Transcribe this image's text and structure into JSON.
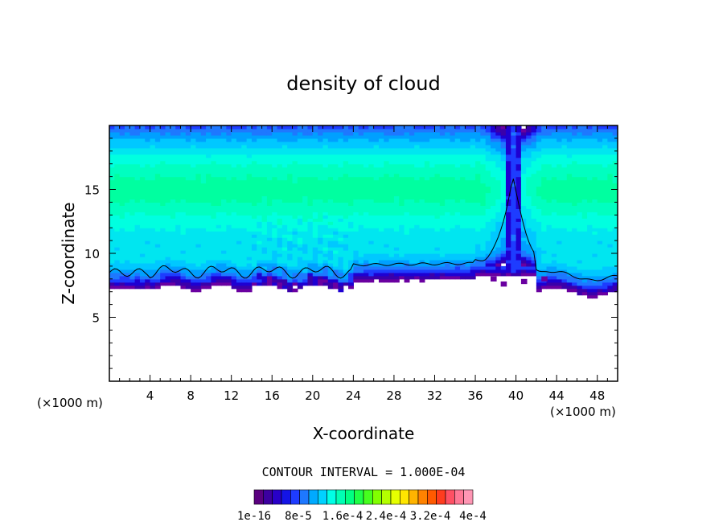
{
  "chart_data": {
    "type": "heatmap",
    "title": "density of cloud",
    "xlabel": "X-coordinate",
    "ylabel": "Z-coordinate",
    "x_unit": "(×1000 m)",
    "z_unit": "(×1000 m)",
    "xlim": [
      0,
      50
    ],
    "ylim": [
      0,
      20
    ],
    "x_ticks": [
      "4",
      "8",
      "12",
      "16",
      "20",
      "24",
      "28",
      "32",
      "36",
      "40",
      "44",
      "48"
    ],
    "y_ticks": [
      "5",
      "10",
      "15"
    ],
    "contour_interval": "CONTOUR INTERVAL = 1.000E-04",
    "colorbar": {
      "labels": [
        "1e-16",
        "8e-5",
        "1.6e-4",
        "2.4e-4",
        "3.2e-4",
        "4e-4"
      ],
      "colors": [
        "#5a007f",
        "#3c00a0",
        "#2800c8",
        "#1414e6",
        "#1e3cff",
        "#1e78ff",
        "#00aaff",
        "#00d2ff",
        "#00ffe6",
        "#00ffb4",
        "#00ff82",
        "#1eff46",
        "#46ff1e",
        "#82ff00",
        "#b4ff00",
        "#e6ff00",
        "#ffe600",
        "#ffb400",
        "#ff8200",
        "#ff5a00",
        "#ff3c1e",
        "#ff5064",
        "#ff7896",
        "#ff96b4"
      ]
    },
    "grid": false,
    "legend": "none"
  }
}
